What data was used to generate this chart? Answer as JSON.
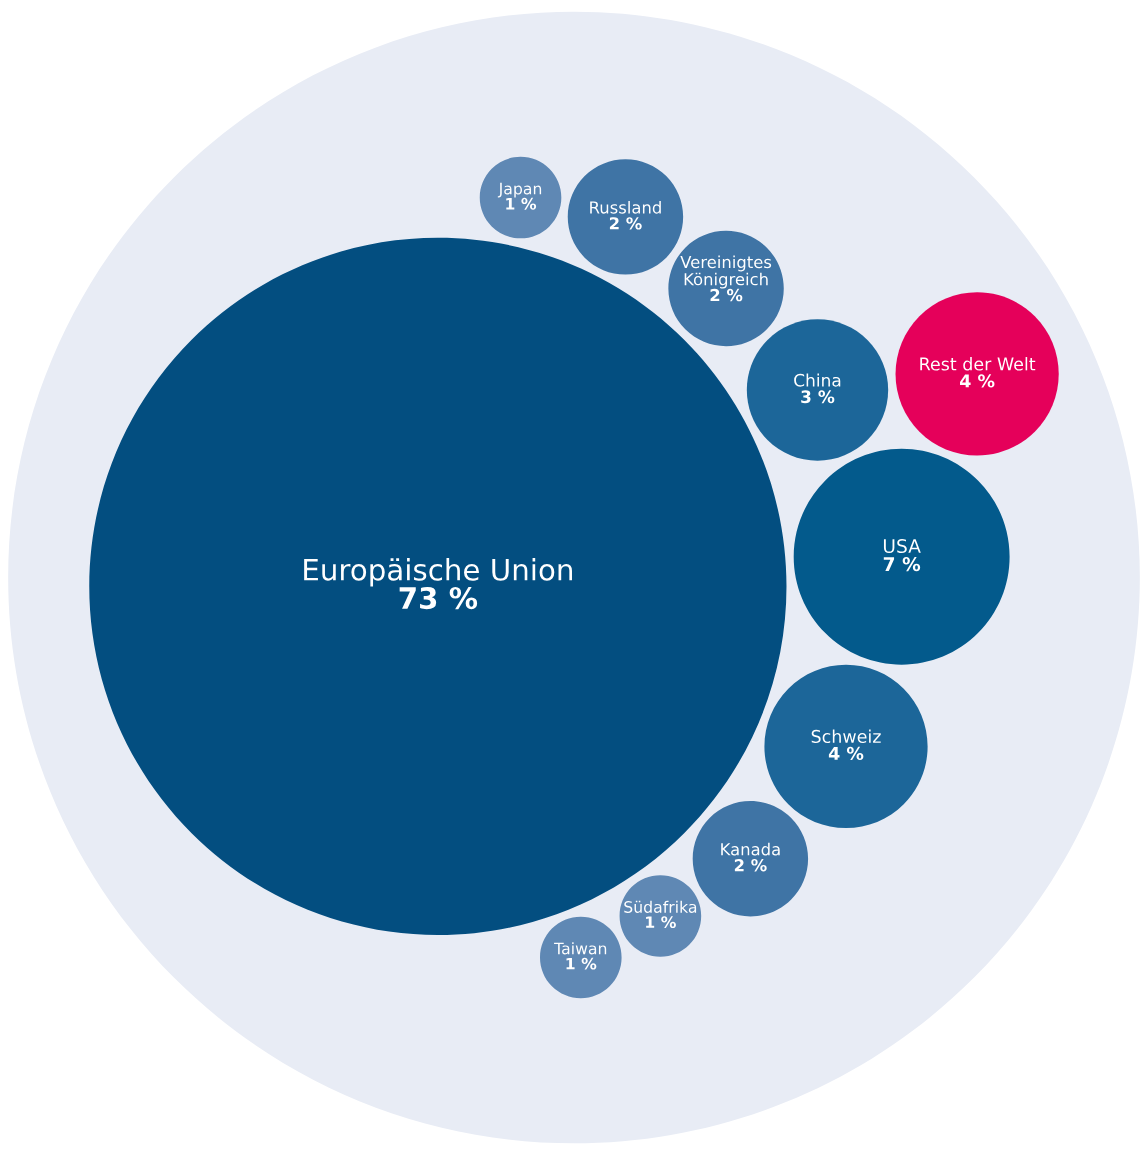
{
  "chart_data": {
    "type": "other",
    "categories": [
      "Europäische Union",
      "Japan",
      "Russland",
      "Vereinigtes\nKönigreich",
      "China",
      "USA",
      "Schweiz",
      "Kanada",
      "Südafrika",
      "Taiwan",
      "Rest der Welt"
    ],
    "values": [
      73,
      1,
      2,
      2,
      3,
      7,
      4,
      2,
      1,
      1,
      4
    ],
    "value_labels": [
      "73 %",
      "1 %",
      "2 %",
      "2 %",
      "3 %",
      "7 %",
      "4 %",
      "2 %",
      "1 %",
      "1 %",
      "4 %"
    ],
    "colors": [
      "#034e80",
      "#5f88b4",
      "#3f74a5",
      "#3f74a5",
      "#1c6699",
      "#035a8c",
      "#1c6699",
      "#3f74a5",
      "#5f88b4",
      "#5f88b4",
      "#e5005a"
    ]
  }
}
